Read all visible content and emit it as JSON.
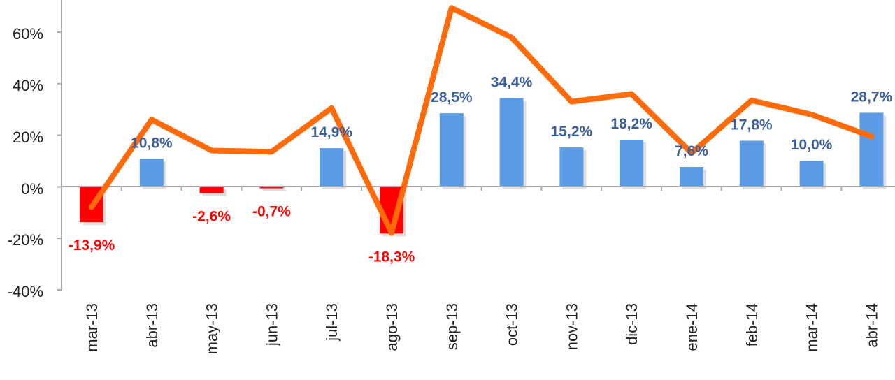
{
  "chart_data": {
    "type": "bar",
    "categories": [
      "mar-13",
      "abr-13",
      "may-13",
      "jun-13",
      "jul-13",
      "ago-13",
      "sep-13",
      "oct-13",
      "nov-13",
      "dic-13",
      "ene-14",
      "feb-14",
      "mar-14",
      "abr-14"
    ],
    "series": [
      {
        "type": "bar",
        "values": [
          -13.9,
          10.8,
          -2.6,
          -0.7,
          14.9,
          -18.3,
          28.5,
          34.4,
          15.2,
          18.2,
          7.6,
          17.8,
          10.0,
          28.7
        ],
        "labels": [
          "-13,9%",
          "10,8%",
          "-2,6%",
          "-0,7%",
          "14,9%",
          "-18,3%",
          "28,5%",
          "34,4%",
          "15,2%",
          "18,2%",
          "7,6%",
          "17,8%",
          "10,0%",
          "28,7%"
        ]
      },
      {
        "type": "line",
        "values": [
          -8,
          26,
          14,
          13.5,
          30.5,
          -18,
          69.5,
          58,
          33,
          36,
          13,
          33.5,
          28,
          19.5
        ]
      }
    ],
    "yticks": [
      "60%",
      "40%",
      "20%",
      "0%",
      "-20%",
      "-40%"
    ],
    "ylim": [
      -40,
      70
    ],
    "colors": {
      "positive_bar": "#5b9be6",
      "negative_bar": "#ff0000",
      "line": "#ff6a0a",
      "positive_label": "#3a5f9a",
      "negative_label": "#ff0000"
    }
  }
}
